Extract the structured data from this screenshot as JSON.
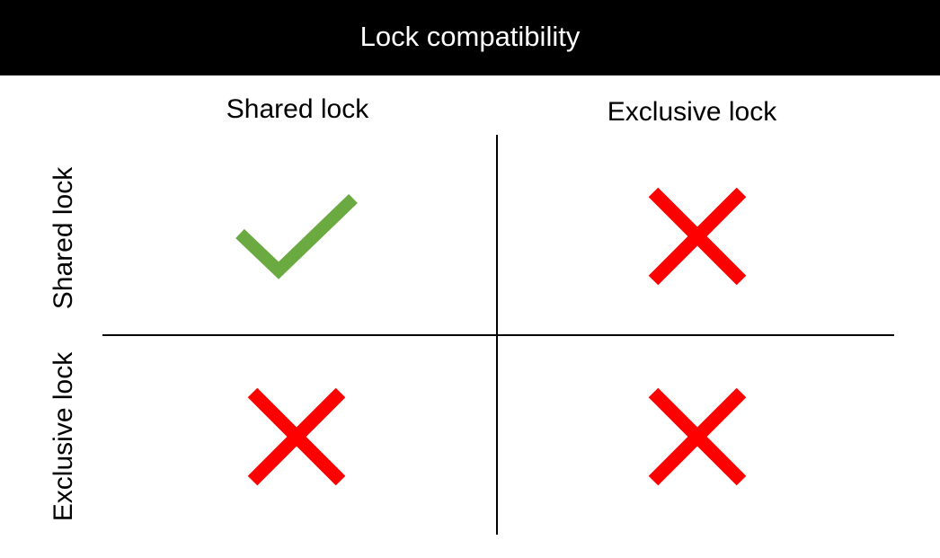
{
  "title": "Lock compatibility",
  "columns": [
    "Shared lock",
    "Exclusive lock"
  ],
  "rows": [
    "Shared lock",
    "Exclusive lock"
  ],
  "matrix": [
    [
      true,
      false
    ],
    [
      false,
      false
    ]
  ],
  "colors": {
    "title_bar": "#000000",
    "title_text": "#ffffff",
    "compatible": "#6aaa41",
    "incompatible": "#ff0000",
    "grid_line": "#000000"
  },
  "icons": {
    "compatible": "check-icon",
    "incompatible": "cross-icon"
  }
}
